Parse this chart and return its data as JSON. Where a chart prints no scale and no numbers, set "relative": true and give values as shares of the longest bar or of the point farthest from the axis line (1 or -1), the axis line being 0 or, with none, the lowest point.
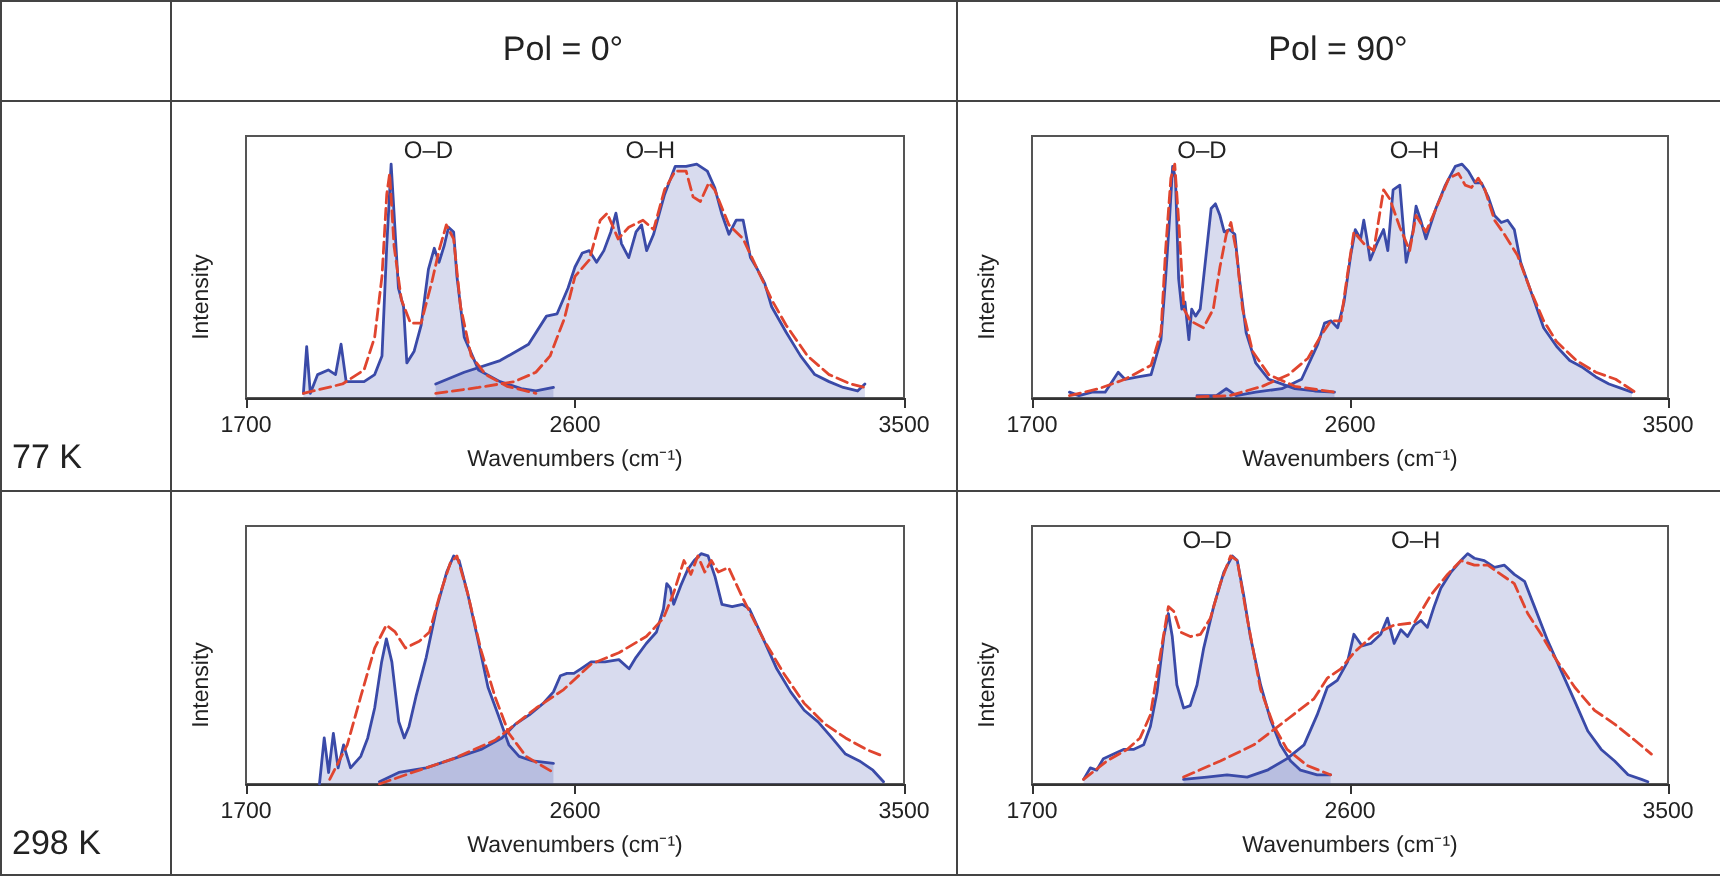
{
  "chart_data": [
    {
      "type": "other",
      "categories": [
        "Pol = 0°",
        "Pol = 90°"
      ],
      "y_categories": [
        "77 K",
        "298 K"
      ]
    },
    {
      "type": "area",
      "relative": true,
      "xlim": [
        1700,
        3500
      ],
      "xticks": [
        1700,
        2600,
        3500
      ],
      "xlabel": "Wavenumbers (cm⁻¹)",
      "ylabel": "Intensity",
      "annotations": [
        "O–D",
        "O–H"
      ],
      "series": [
        {
          "color": "#3a4aa8",
          "x": [
            1857,
            1866,
            1876,
            1896,
            1925,
            1945,
            1960,
            1974,
            2023,
            2052,
            2072,
            2085,
            2097,
            2105,
            2117,
            2131,
            2140,
            2160,
            2179,
            2199,
            2215,
            2228,
            2242,
            2254,
            2268,
            2277,
            2297,
            2336,
            2395,
            2453,
            2493,
            2541
          ],
          "values": [
            0.02,
            0.22,
            0.02,
            0.1,
            0.12,
            0.1,
            0.23,
            0.07,
            0.07,
            0.1,
            0.18,
            0.65,
            1.0,
            0.79,
            0.47,
            0.39,
            0.15,
            0.2,
            0.31,
            0.55,
            0.64,
            0.58,
            0.65,
            0.73,
            0.71,
            0.52,
            0.26,
            0.12,
            0.07,
            0.04,
            0.03,
            0.045
          ]
        },
        {
          "color": "#3a4aa8",
          "x": [
            2219,
            2297,
            2395,
            2473,
            2522,
            2551,
            2581,
            2600,
            2620,
            2639,
            2659,
            2679,
            2698,
            2712,
            2727,
            2747,
            2767,
            2782,
            2796,
            2815,
            2845,
            2874,
            2904,
            2933,
            2962,
            2982,
            3001,
            3021,
            3041,
            3060,
            3080,
            3099,
            3119,
            3138,
            3178,
            3217,
            3256,
            3295,
            3334,
            3373,
            3393
          ],
          "values": [
            0.06,
            0.11,
            0.16,
            0.23,
            0.35,
            0.36,
            0.47,
            0.56,
            0.62,
            0.63,
            0.58,
            0.63,
            0.71,
            0.79,
            0.66,
            0.6,
            0.71,
            0.74,
            0.63,
            0.7,
            0.87,
            0.99,
            0.99,
            1.0,
            0.97,
            0.9,
            0.79,
            0.7,
            0.76,
            0.76,
            0.6,
            0.55,
            0.49,
            0.39,
            0.28,
            0.18,
            0.1,
            0.07,
            0.045,
            0.03,
            0.06
          ]
        },
        {
          "type": "line",
          "line_style": "dashed",
          "color": "#e0452f",
          "x": [
            1857,
            1964,
            2023,
            2052,
            2072,
            2085,
            2093,
            2105,
            2125,
            2150,
            2179,
            2209,
            2228,
            2248,
            2268,
            2287,
            2316,
            2356,
            2414,
            2493
          ],
          "values": [
            0.02,
            0.06,
            0.12,
            0.26,
            0.52,
            0.87,
            0.96,
            0.65,
            0.42,
            0.32,
            0.32,
            0.5,
            0.63,
            0.74,
            0.68,
            0.39,
            0.18,
            0.1,
            0.05,
            0.02
          ]
        },
        {
          "type": "line",
          "line_style": "dashed",
          "color": "#e0452f",
          "x": [
            2219,
            2336,
            2434,
            2493,
            2532,
            2571,
            2600,
            2639,
            2669,
            2688,
            2718,
            2747,
            2786,
            2815,
            2845,
            2874,
            2904,
            2923,
            2943,
            2966,
            2982,
            3021,
            3060,
            3099,
            3138,
            3178,
            3236,
            3295,
            3354,
            3393
          ],
          "values": [
            0.02,
            0.045,
            0.07,
            0.11,
            0.18,
            0.34,
            0.52,
            0.59,
            0.76,
            0.79,
            0.68,
            0.73,
            0.76,
            0.72,
            0.89,
            0.97,
            0.97,
            0.86,
            0.84,
            0.92,
            0.89,
            0.74,
            0.68,
            0.55,
            0.42,
            0.31,
            0.18,
            0.1,
            0.06,
            0.045
          ]
        }
      ]
    },
    {
      "type": "area",
      "relative": true,
      "xlim": [
        1700,
        3500
      ],
      "xticks": [
        1700,
        2600,
        3500
      ],
      "xlabel": "Wavenumbers (cm⁻¹)",
      "ylabel": "Intensity",
      "annotations": [
        "O–D",
        "O–H"
      ],
      "series": [
        {
          "color": "#3a4aa8",
          "x": [
            1806,
            1833,
            1870,
            1907,
            1944,
            1963,
            2000,
            2037,
            2065,
            2078,
            2089,
            2098,
            2106,
            2115,
            2124,
            2133,
            2144,
            2152,
            2163,
            2176,
            2194,
            2207,
            2219,
            2232,
            2244,
            2259,
            2274,
            2287,
            2306,
            2333,
            2370,
            2444,
            2500,
            2556
          ],
          "values": [
            0.025,
            0.01,
            0.025,
            0.025,
            0.11,
            0.08,
            0.09,
            0.1,
            0.25,
            0.51,
            0.76,
            0.99,
            0.94,
            0.51,
            0.38,
            0.41,
            0.25,
            0.38,
            0.35,
            0.38,
            0.63,
            0.81,
            0.83,
            0.78,
            0.71,
            0.72,
            0.7,
            0.51,
            0.28,
            0.15,
            0.08,
            0.04,
            0.03,
            0.025
          ]
        },
        {
          "color": "#3a4aa8",
          "x": [
            2167,
            2222,
            2250,
            2278,
            2333,
            2407,
            2463,
            2509,
            2528,
            2546,
            2565,
            2583,
            2602,
            2615,
            2630,
            2639,
            2648,
            2657,
            2676,
            2695,
            2707,
            2722,
            2741,
            2759,
            2778,
            2787,
            2800,
            2815,
            2843,
            2870,
            2898,
            2917,
            2935,
            2954,
            2972,
            2991,
            3009,
            3028,
            3046,
            3065,
            3083,
            3111,
            3148,
            3185,
            3222,
            3259,
            3296,
            3333,
            3370,
            3398
          ],
          "values": [
            0.01,
            0.01,
            0.04,
            0.01,
            0.025,
            0.04,
            0.08,
            0.23,
            0.32,
            0.33,
            0.3,
            0.41,
            0.61,
            0.72,
            0.68,
            0.76,
            0.68,
            0.59,
            0.66,
            0.72,
            0.63,
            0.89,
            0.91,
            0.58,
            0.71,
            0.82,
            0.76,
            0.68,
            0.81,
            0.91,
            0.99,
            1.0,
            0.97,
            0.92,
            0.92,
            0.86,
            0.78,
            0.75,
            0.76,
            0.72,
            0.58,
            0.46,
            0.3,
            0.22,
            0.16,
            0.13,
            0.09,
            0.06,
            0.04,
            0.025
          ]
        },
        {
          "type": "line",
          "line_style": "dashed",
          "color": "#e0452f",
          "x": [
            1806,
            1889,
            1963,
            2037,
            2065,
            2078,
            2093,
            2104,
            2115,
            2130,
            2148,
            2185,
            2213,
            2232,
            2250,
            2263,
            2278,
            2296,
            2324,
            2370,
            2444,
            2556
          ],
          "values": [
            0.01,
            0.04,
            0.08,
            0.14,
            0.28,
            0.63,
            0.94,
            1.0,
            0.76,
            0.38,
            0.33,
            0.3,
            0.38,
            0.56,
            0.7,
            0.75,
            0.63,
            0.38,
            0.2,
            0.1,
            0.05,
            0.025
          ]
        },
        {
          "type": "line",
          "line_style": "dashed",
          "color": "#e0452f",
          "x": [
            2167,
            2259,
            2352,
            2426,
            2481,
            2519,
            2546,
            2574,
            2593,
            2611,
            2639,
            2667,
            2695,
            2713,
            2741,
            2769,
            2787,
            2815,
            2852,
            2880,
            2907,
            2926,
            2944,
            2963,
            2982,
            3009,
            3037,
            3074,
            3111,
            3148,
            3185,
            3241,
            3296,
            3352,
            3407
          ],
          "values": [
            0.005,
            0.01,
            0.05,
            0.1,
            0.17,
            0.27,
            0.33,
            0.33,
            0.53,
            0.71,
            0.66,
            0.63,
            0.89,
            0.85,
            0.73,
            0.63,
            0.78,
            0.71,
            0.84,
            0.94,
            0.96,
            0.91,
            0.9,
            0.94,
            0.89,
            0.76,
            0.7,
            0.61,
            0.46,
            0.33,
            0.24,
            0.16,
            0.11,
            0.08,
            0.025
          ]
        }
      ]
    },
    {
      "type": "area",
      "relative": true,
      "xlim": [
        1700,
        3500
      ],
      "xticks": [
        1700,
        2600,
        3500
      ],
      "xlabel": "Wavenumbers (cm⁻¹)",
      "ylabel": "Intensity",
      "series": [
        {
          "color": "#3a4aa8",
          "x": [
            1901,
            1914,
            1926,
            1939,
            1952,
            1967,
            1986,
            2014,
            2033,
            2052,
            2071,
            2084,
            2099,
            2118,
            2133,
            2146,
            2165,
            2193,
            2221,
            2249,
            2268,
            2283,
            2306,
            2334,
            2362,
            2390,
            2419,
            2447,
            2484,
            2541
          ],
          "values": [
            0.0,
            0.2,
            0.05,
            0.22,
            0.07,
            0.17,
            0.07,
            0.12,
            0.2,
            0.33,
            0.53,
            0.63,
            0.53,
            0.27,
            0.2,
            0.25,
            0.38,
            0.55,
            0.76,
            0.92,
            0.99,
            0.97,
            0.83,
            0.63,
            0.42,
            0.3,
            0.17,
            0.12,
            0.1,
            0.09
          ]
        },
        {
          "color": "#3a4aa8",
          "x": [
            2065,
            2118,
            2193,
            2268,
            2343,
            2400,
            2437,
            2475,
            2513,
            2541,
            2560,
            2578,
            2597,
            2616,
            2644,
            2682,
            2720,
            2748,
            2767,
            2795,
            2823,
            2842,
            2851,
            2861,
            2870,
            2889,
            2908,
            2926,
            2945,
            2964,
            2983,
            3002,
            3030,
            3058,
            3077,
            3115,
            3152,
            3190,
            3227,
            3265,
            3303,
            3340,
            3378,
            3415,
            3444
          ],
          "values": [
            0.01,
            0.05,
            0.07,
            0.11,
            0.15,
            0.2,
            0.26,
            0.3,
            0.35,
            0.4,
            0.47,
            0.48,
            0.48,
            0.5,
            0.53,
            0.53,
            0.54,
            0.5,
            0.55,
            0.61,
            0.66,
            0.76,
            0.87,
            0.85,
            0.78,
            0.86,
            0.93,
            0.97,
            1.0,
            0.99,
            0.9,
            0.78,
            0.77,
            0.78,
            0.76,
            0.63,
            0.5,
            0.4,
            0.32,
            0.27,
            0.2,
            0.13,
            0.1,
            0.06,
            0.01
          ]
        },
        {
          "type": "line",
          "line_style": "dashed",
          "color": "#e0452f",
          "x": [
            1929,
            1977,
            2014,
            2052,
            2084,
            2108,
            2136,
            2174,
            2202,
            2230,
            2259,
            2277,
            2306,
            2343,
            2381,
            2419,
            2466,
            2541
          ],
          "values": [
            0.02,
            0.17,
            0.38,
            0.59,
            0.69,
            0.66,
            0.59,
            0.62,
            0.66,
            0.82,
            0.96,
            0.99,
            0.83,
            0.58,
            0.38,
            0.22,
            0.12,
            0.05
          ]
        },
        {
          "type": "line",
          "line_style": "dashed",
          "color": "#e0452f",
          "x": [
            2065,
            2155,
            2268,
            2381,
            2494,
            2569,
            2644,
            2720,
            2795,
            2842,
            2870,
            2898,
            2917,
            2936,
            2955,
            2973,
            2992,
            3020,
            3058,
            3115,
            3171,
            3227,
            3284,
            3340,
            3397,
            3444
          ],
          "values": [
            0.0,
            0.05,
            0.11,
            0.19,
            0.33,
            0.41,
            0.52,
            0.57,
            0.64,
            0.72,
            0.83,
            0.97,
            0.91,
            0.99,
            0.92,
            0.97,
            0.92,
            0.94,
            0.81,
            0.63,
            0.48,
            0.35,
            0.26,
            0.2,
            0.15,
            0.12
          ]
        }
      ]
    },
    {
      "type": "area",
      "relative": true,
      "xlim": [
        1700,
        3500
      ],
      "xticks": [
        1700,
        2600,
        3500
      ],
      "xlabel": "Wavenumbers (cm⁻¹)",
      "ylabel": "Intensity",
      "annotations": [
        "O–D",
        "O–H"
      ],
      "series": [
        {
          "color": "#3a4aa8",
          "x": [
            1846,
            1865,
            1883,
            1902,
            1931,
            1959,
            1987,
            2016,
            2035,
            2054,
            2073,
            2086,
            2097,
            2110,
            2129,
            2148,
            2167,
            2186,
            2214,
            2243,
            2267,
            2281,
            2299,
            2318,
            2347,
            2375,
            2403,
            2432,
            2460,
            2507,
            2545
          ],
          "values": [
            0.02,
            0.07,
            0.06,
            0.11,
            0.13,
            0.15,
            0.15,
            0.17,
            0.25,
            0.4,
            0.64,
            0.74,
            0.64,
            0.43,
            0.33,
            0.34,
            0.43,
            0.59,
            0.77,
            0.92,
            0.99,
            0.97,
            0.82,
            0.64,
            0.43,
            0.28,
            0.17,
            0.1,
            0.06,
            0.04,
            0.04
          ]
        },
        {
          "color": "#3a4aa8",
          "x": [
            2129,
            2195,
            2252,
            2309,
            2366,
            2422,
            2470,
            2507,
            2536,
            2564,
            2593,
            2611,
            2634,
            2659,
            2687,
            2706,
            2725,
            2744,
            2763,
            2782,
            2801,
            2819,
            2838,
            2857,
            2886,
            2914,
            2933,
            2952,
            2980,
            3009,
            3037,
            3065,
            3094,
            3122,
            3160,
            3198,
            3236,
            3273,
            3311,
            3349,
            3387,
            3425,
            3443
          ],
          "values": [
            0.02,
            0.03,
            0.04,
            0.03,
            0.06,
            0.11,
            0.17,
            0.3,
            0.42,
            0.45,
            0.53,
            0.65,
            0.6,
            0.61,
            0.65,
            0.72,
            0.61,
            0.67,
            0.64,
            0.69,
            0.71,
            0.68,
            0.77,
            0.85,
            0.92,
            0.97,
            1.0,
            0.98,
            0.97,
            0.94,
            0.95,
            0.91,
            0.88,
            0.77,
            0.62,
            0.49,
            0.36,
            0.23,
            0.15,
            0.1,
            0.04,
            0.02,
            0.01
          ]
        },
        {
          "type": "line",
          "line_style": "dashed",
          "color": "#e0452f",
          "x": [
            1846,
            1912,
            1969,
            2006,
            2035,
            2063,
            2086,
            2101,
            2120,
            2148,
            2177,
            2205,
            2233,
            2262,
            2281,
            2309,
            2347,
            2385,
            2422,
            2479,
            2545
          ],
          "values": [
            0.02,
            0.1,
            0.15,
            0.2,
            0.3,
            0.56,
            0.77,
            0.75,
            0.66,
            0.64,
            0.65,
            0.72,
            0.87,
            0.99,
            0.97,
            0.72,
            0.41,
            0.25,
            0.15,
            0.08,
            0.04
          ]
        },
        {
          "type": "line",
          "line_style": "dashed",
          "color": "#e0452f",
          "x": [
            2129,
            2233,
            2328,
            2422,
            2498,
            2536,
            2574,
            2611,
            2668,
            2725,
            2782,
            2829,
            2876,
            2914,
            2952,
            2990,
            3027,
            3065,
            3103,
            3141,
            3179,
            3236,
            3292,
            3349,
            3406,
            3453
          ],
          "values": [
            0.03,
            0.1,
            0.17,
            0.28,
            0.37,
            0.46,
            0.5,
            0.57,
            0.65,
            0.69,
            0.7,
            0.82,
            0.91,
            0.97,
            0.95,
            0.95,
            0.91,
            0.87,
            0.74,
            0.65,
            0.55,
            0.42,
            0.32,
            0.26,
            0.19,
            0.13
          ]
        }
      ]
    }
  ]
}
